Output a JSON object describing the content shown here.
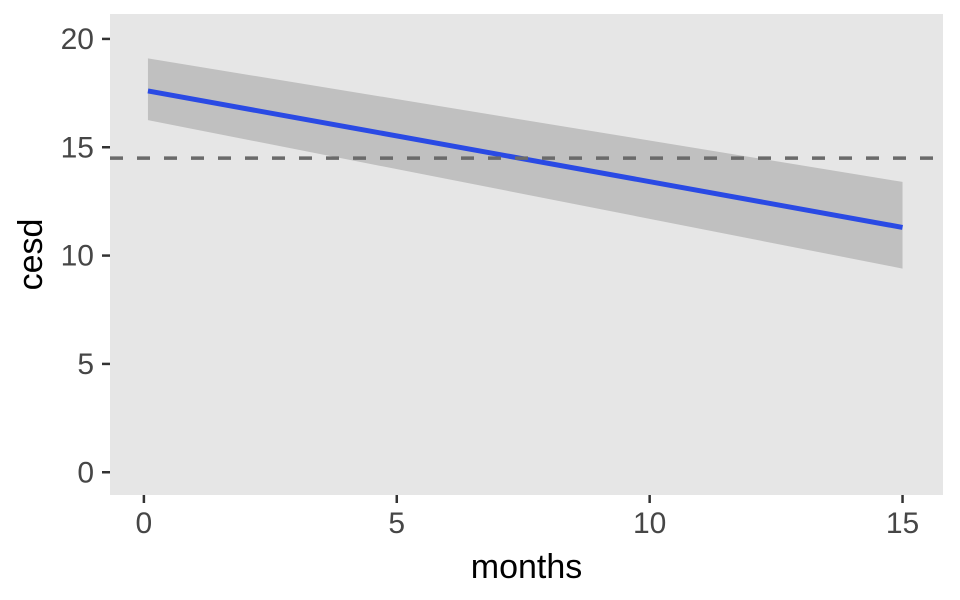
{
  "figure": {
    "background": "#ffffff"
  },
  "chart_data": {
    "type": "line",
    "title": "",
    "xlabel": "months",
    "ylabel": "cesd",
    "x_ticks": [
      0,
      5,
      10,
      15
    ],
    "y_ticks": [
      0,
      5,
      10,
      15,
      20
    ],
    "xlim": [
      -0.67,
      15.8
    ],
    "ylim": [
      -1.05,
      21.15
    ],
    "grid": false,
    "legend": "none",
    "panel_bg": "#e6e6e6",
    "axis": {
      "tick_color": "#333333",
      "tick_length": 8,
      "tick_width": 2.5,
      "tick_label_color": "#464646",
      "title_color": "#000000"
    },
    "series": [
      {
        "name": "fitted-line",
        "color": "#2a4ae4",
        "stroke_width": 5,
        "points": [
          {
            "x": 0.08,
            "y": 17.6
          },
          {
            "x": 15.0,
            "y": 11.3
          }
        ]
      }
    ],
    "ribbon": {
      "name": "confidence-band",
      "color": "#c0c0c0",
      "x": [
        0.08,
        15.0
      ],
      "upper": [
        19.1,
        13.4
      ],
      "lower": [
        16.25,
        9.4
      ]
    },
    "reference_line": {
      "y": 14.5,
      "color": "#6a6a6a",
      "stroke_width": 3.5,
      "dash": [
        13,
        14
      ]
    }
  }
}
